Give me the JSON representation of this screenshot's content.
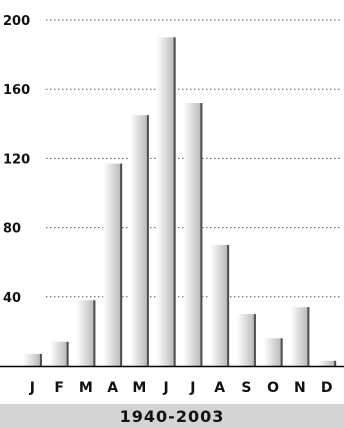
{
  "chart_data": {
    "type": "bar",
    "categories": [
      "J",
      "F",
      "M",
      "A",
      "M",
      "J",
      "J",
      "A",
      "S",
      "O",
      "N",
      "D"
    ],
    "values": [
      7,
      14,
      38,
      117,
      145,
      190,
      152,
      70,
      30,
      16,
      34,
      3
    ],
    "ylim": [
      0,
      200
    ],
    "yticks": [
      40,
      80,
      120,
      160,
      200
    ],
    "grid": true,
    "grid_style": "dotted",
    "colors": {
      "bar_light": "#ffffff",
      "bar_dark": "#b4b4b4",
      "bar_shadow": "#4d4d4d",
      "grid": "#555555",
      "axis": "#000000"
    }
  },
  "footer": {
    "label": "1940-2003"
  }
}
